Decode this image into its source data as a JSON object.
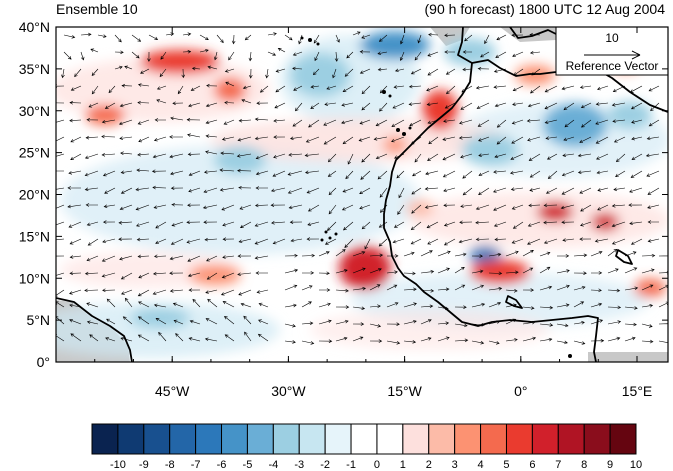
{
  "titles": {
    "left": "Ensemble 10",
    "right": "(90 h forecast) 1800 UTC 12 Aug 2004"
  },
  "reference_vector": {
    "magnitude": "10",
    "label": "Reference Vector"
  },
  "map": {
    "lat_labels": [
      "40°N",
      "35°N",
      "30°N",
      "25°N",
      "20°N",
      "15°N",
      "10°N",
      "5°N",
      "0°"
    ],
    "lon_labels": [
      "45°W",
      "30°W",
      "15°W",
      "0°",
      "15°E"
    ],
    "lat_values": [
      40,
      35,
      30,
      25,
      20,
      15,
      10,
      5,
      0
    ],
    "lon_values": [
      -45,
      -30,
      -15,
      0,
      15
    ],
    "extent": {
      "lon_min": -60,
      "lon_max": 19,
      "lat_min": 0,
      "lat_max": 40
    },
    "colors": {
      "land_mask": "#c8c8c8",
      "coast": "#000000",
      "vector": "#000000"
    }
  },
  "colorbar": {
    "labels": [
      "-10",
      "-9",
      "-8",
      "-7",
      "-6",
      "-5",
      "-4",
      "-3",
      "-2",
      "-1",
      "0",
      "1",
      "2",
      "3",
      "4",
      "5",
      "6",
      "7",
      "8",
      "9",
      "10"
    ],
    "colors": [
      "#0a2350",
      "#0f3a72",
      "#18508f",
      "#2366a8",
      "#2c78ba",
      "#4593c8",
      "#6aaed6",
      "#9ccfe2",
      "#c7e6f1",
      "#e6f4fa",
      "#ffffff",
      "#ffffff",
      "#fde0dd",
      "#fcbba8",
      "#fc9272",
      "#f46a4e",
      "#ea3b2f",
      "#d1202b",
      "#b01424",
      "#8a0d1c",
      "#650510"
    ]
  }
}
